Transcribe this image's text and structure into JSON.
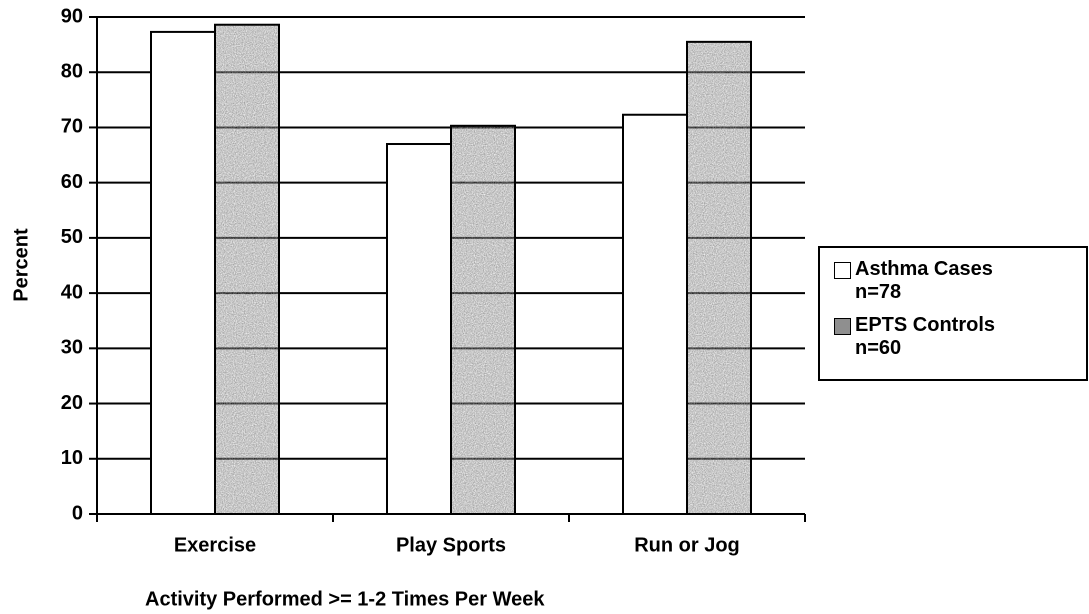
{
  "chart_data": {
    "type": "bar",
    "categories": [
      "Exercise",
      "Play Sports",
      "Run or Jog"
    ],
    "series": [
      {
        "name": "Asthma Cases n=78",
        "color": "#ffffff",
        "values": [
          87.3,
          67.0,
          72.3
        ]
      },
      {
        "name": "EPTS Controls n=60",
        "color": "#8f8f8f",
        "values": [
          88.6,
          70.3,
          85.5
        ]
      }
    ],
    "xlabel": "Activity Performed >= 1-2 Times Per Week",
    "ylabel": "Percent",
    "ylim": [
      0,
      90
    ],
    "yticks": [
      0,
      10,
      20,
      30,
      40,
      50,
      60,
      70,
      80,
      90
    ],
    "grid": true,
    "legend": "right"
  }
}
